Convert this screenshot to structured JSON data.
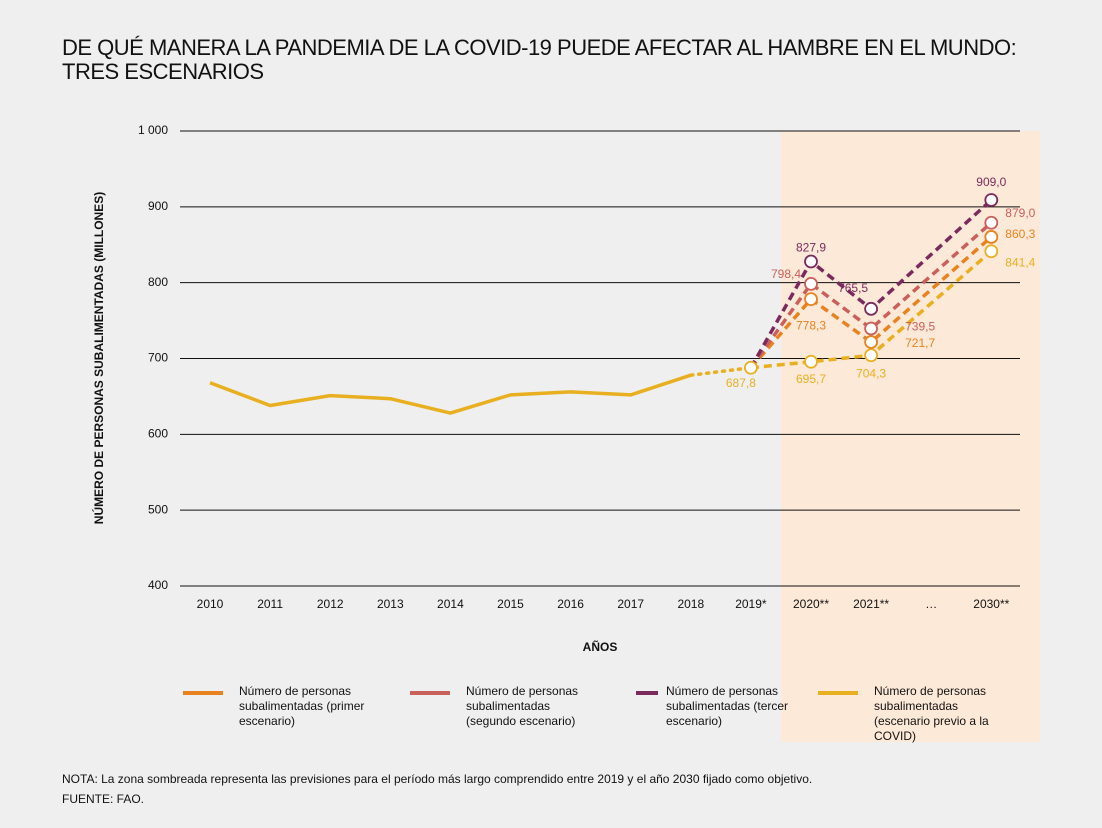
{
  "chart_data": {
    "type": "line",
    "title": "DE QUÉ MANERA LA PANDEMIA DE LA COVID-19 PUEDE AFECTAR AL HAMBRE EN EL MUNDO: TRES ESCENARIOS",
    "y_label": "NÚMERO DE PERSONAS SUBALIMENTADAS (MILLONES)",
    "x_label": "AÑOS",
    "categories": [
      "2010",
      "2011",
      "2012",
      "2013",
      "2014",
      "2015",
      "2016",
      "2017",
      "2018",
      "2019*",
      "2020**",
      "2021**",
      "2030**"
    ],
    "x_break_label": "…",
    "shaded_from": 10,
    "ylim": [
      400,
      1000
    ],
    "yticks": [
      400,
      500,
      600,
      700,
      800,
      900,
      {
        "value": 1000,
        "label": "1 000"
      }
    ],
    "grid": true,
    "series": [
      {
        "name": "Número de personas subalimentadas (primer escenario)",
        "color": "#e8821e",
        "values": [
          null,
          null,
          null,
          null,
          null,
          null,
          null,
          null,
          null,
          687.8,
          778.3,
          721.7,
          860.3
        ],
        "value_labels": [
          null,
          null,
          null,
          null,
          null,
          null,
          null,
          null,
          null,
          null,
          "778,3",
          "721,7",
          "860,3"
        ]
      },
      {
        "name": "Número de personas subalimentadas (segundo escenario)",
        "color": "#c9605a",
        "values": [
          null,
          null,
          null,
          null,
          null,
          null,
          null,
          null,
          null,
          687.8,
          798.4,
          739.5,
          879.0
        ],
        "value_labels": [
          null,
          null,
          null,
          null,
          null,
          null,
          null,
          null,
          null,
          null,
          "798,4",
          "739,5",
          "879,0"
        ]
      },
      {
        "name": "Número de personas subalimentadas (tercer escenario)",
        "color": "#7b2a5e",
        "values": [
          null,
          null,
          null,
          null,
          null,
          null,
          null,
          null,
          null,
          687.8,
          827.9,
          765.5,
          909.0
        ],
        "value_labels": [
          null,
          null,
          null,
          null,
          null,
          null,
          null,
          null,
          null,
          null,
          "827,9",
          "765,5",
          "909,0"
        ]
      },
      {
        "name": "Número de personas subalimentadas (escenario previo a la COVID)",
        "color": "#e8b020",
        "values": [
          668,
          638,
          651,
          647,
          628,
          652,
          656,
          652,
          678,
          687.8,
          695.7,
          704.3,
          841.4
        ],
        "value_labels": [
          null,
          null,
          null,
          null,
          null,
          null,
          null,
          null,
          null,
          "687,8",
          "695,7",
          "704,3",
          "841,4"
        ]
      }
    ],
    "note": "NOTA: La zona sombreada representa las previsiones para el período más largo comprendido entre 2019 y el año 2030 fijado como objetivo.",
    "source": "FUENTE: FAO."
  }
}
